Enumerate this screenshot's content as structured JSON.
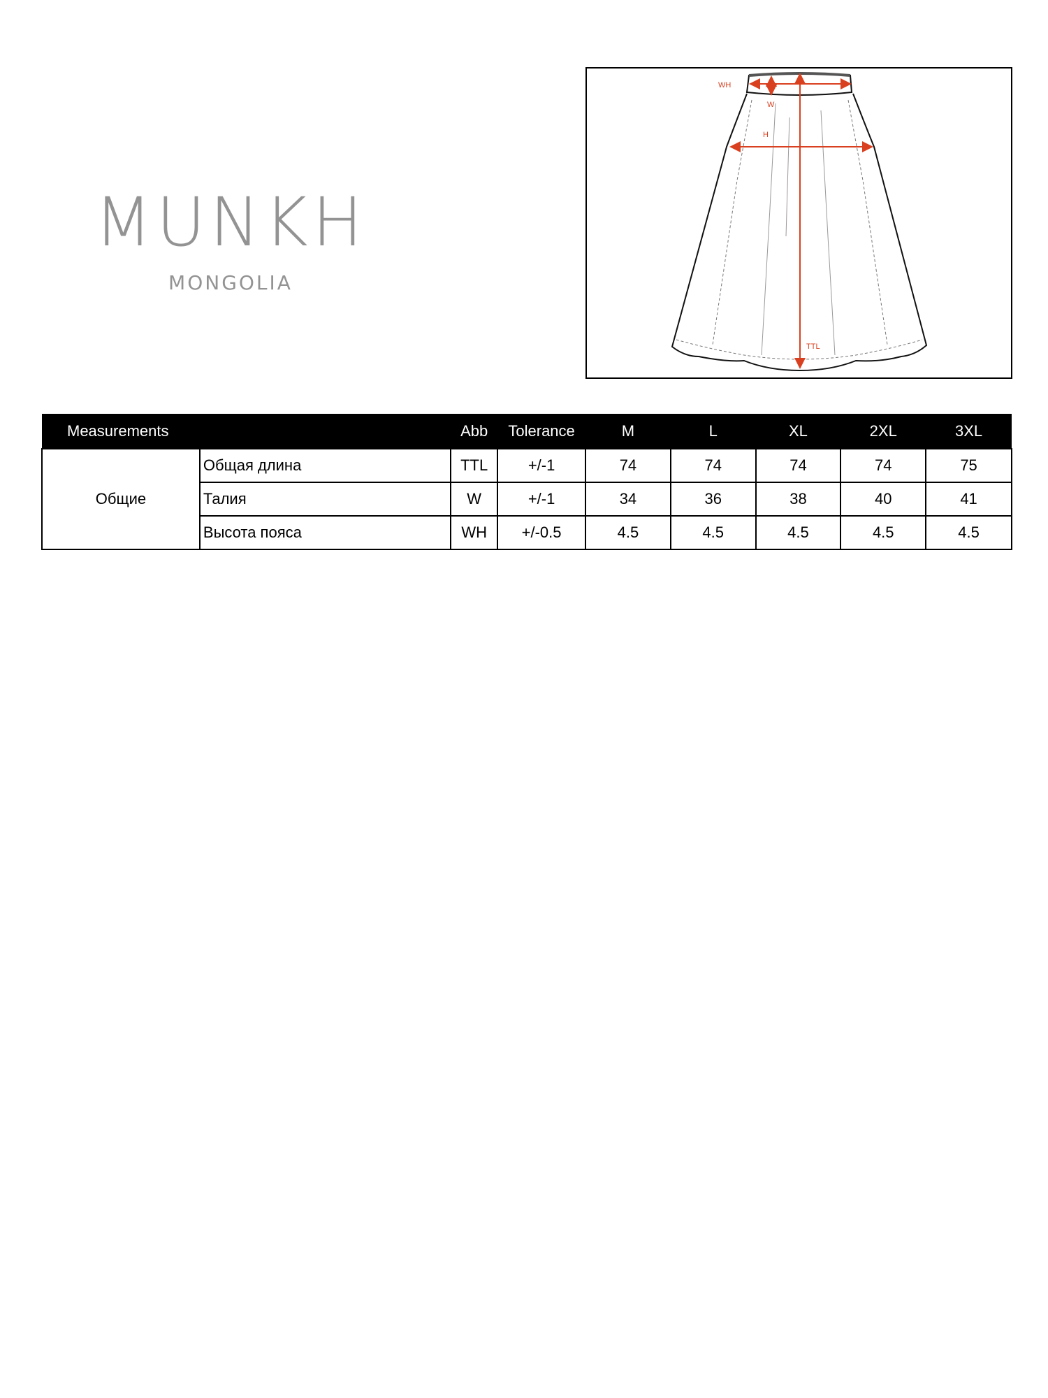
{
  "logo": {
    "brand": "MUNKH",
    "subtitle": "MONGOLIA",
    "color": "#939393"
  },
  "diagram": {
    "labels": {
      "wh": "WH",
      "w": "W",
      "h": "H",
      "ttl": "TTL"
    },
    "accent_color": "#d9401f"
  },
  "table": {
    "headers": [
      "Measurements",
      "",
      "Abb",
      "Tolerance",
      "M",
      "L",
      "XL",
      "2XL",
      "3XL"
    ],
    "group": "Общие",
    "rows": [
      {
        "name": "Общая длина",
        "abb": "TTL",
        "tol": "+/-1",
        "values": [
          "74",
          "74",
          "74",
          "74",
          "75"
        ]
      },
      {
        "name": "Талия",
        "abb": "W",
        "tol": "+/-1",
        "values": [
          "34",
          "36",
          "38",
          "40",
          "41"
        ]
      },
      {
        "name": "Высота пояса",
        "abb": "WH",
        "tol": "+/-0.5",
        "values": [
          "4.5",
          "4.5",
          "4.5",
          "4.5",
          "4.5"
        ]
      }
    ]
  }
}
